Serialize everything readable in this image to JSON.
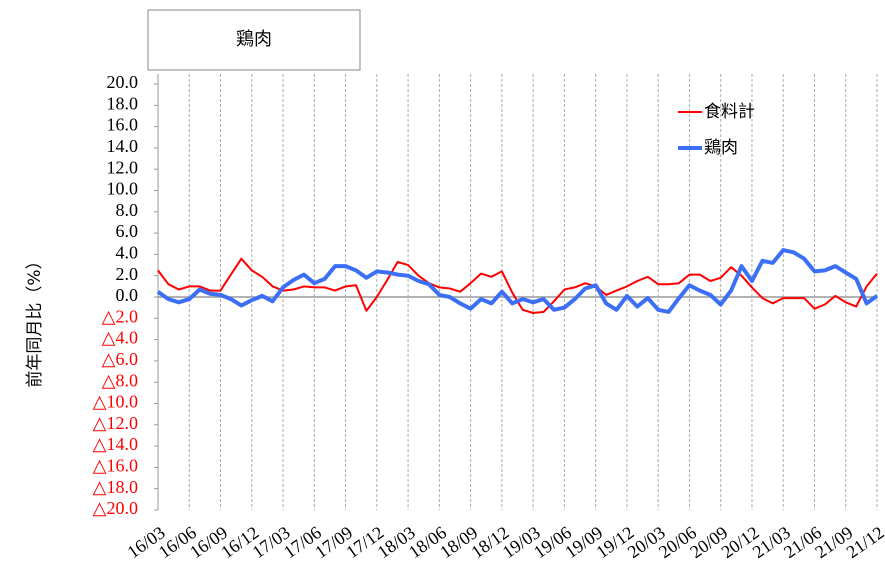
{
  "chart_data": {
    "type": "line",
    "title": "鶏肉",
    "y_label": "前年同月比（%）",
    "categories": [
      "16/03",
      null,
      null,
      "16/06",
      null,
      null,
      "16/09",
      null,
      null,
      "16/12",
      null,
      null,
      "17/03",
      null,
      null,
      "17/06",
      null,
      null,
      "17/09",
      null,
      null,
      "17/12",
      null,
      null,
      "18/03",
      null,
      null,
      "18/06",
      null,
      null,
      "18/09",
      null,
      null,
      "18/12",
      null,
      null,
      "19/03",
      null,
      null,
      "19/06",
      null,
      null,
      "19/09",
      null,
      null,
      "19/12",
      null,
      null,
      "20/03",
      null,
      null,
      "20/06",
      null,
      null,
      "20/09",
      null,
      null,
      "20/12",
      null,
      null,
      "21/03",
      null,
      null,
      "21/06",
      null,
      null,
      "21/09",
      null,
      null,
      "21/12"
    ],
    "series": [
      {
        "name": "食料計",
        "color": "#ff0000",
        "width": 2,
        "values": [
          2.5,
          1.2,
          0.7,
          1.0,
          1.0,
          0.6,
          0.6,
          2.1,
          3.6,
          2.5,
          1.9,
          1.0,
          0.6,
          0.7,
          1.0,
          0.9,
          0.9,
          0.6,
          1.0,
          1.1,
          -1.3,
          0.0,
          1.6,
          3.3,
          3.0,
          2.0,
          1.3,
          0.9,
          0.8,
          0.5,
          1.3,
          2.2,
          1.9,
          2.4,
          0.4,
          -1.2,
          -1.5,
          -1.4,
          -0.4,
          0.7,
          0.9,
          1.3,
          1.0,
          0.2,
          0.6,
          1.0,
          1.5,
          1.9,
          1.2,
          1.2,
          1.3,
          2.1,
          2.1,
          1.5,
          1.8,
          2.8,
          2.0,
          0.9,
          -0.1,
          -0.6,
          -0.1,
          -0.1,
          -0.1,
          -1.1,
          -0.7,
          0.1,
          -0.5,
          -0.9,
          1.0,
          2.2
        ]
      },
      {
        "name": "鶏肉",
        "color": "#3b6ff5",
        "width": 4,
        "values": [
          0.5,
          -0.2,
          -0.5,
          -0.2,
          0.7,
          0.3,
          0.2,
          -0.2,
          -0.8,
          -0.3,
          0.1,
          -0.4,
          0.9,
          1.6,
          2.1,
          1.3,
          1.7,
          2.9,
          2.9,
          2.5,
          1.8,
          2.4,
          2.3,
          2.1,
          2.0,
          1.5,
          1.2,
          0.2,
          0.0,
          -0.6,
          -1.1,
          -0.2,
          -0.6,
          0.5,
          -0.6,
          -0.2,
          -0.5,
          -0.2,
          -1.2,
          -1.0,
          -0.2,
          0.8,
          1.1,
          -0.6,
          -1.2,
          0.1,
          -0.9,
          -0.1,
          -1.2,
          -1.4,
          -0.1,
          1.1,
          0.6,
          0.2,
          -0.7,
          0.6,
          2.9,
          1.5,
          3.4,
          3.2,
          4.4,
          4.2,
          3.6,
          2.4,
          2.5,
          2.9,
          2.3,
          1.7,
          -0.6,
          0.1
        ]
      }
    ],
    "ylim": [
      -20,
      20
    ],
    "yticks": [
      {
        "value": 20,
        "label": "20.0"
      },
      {
        "value": 18,
        "label": "18.0"
      },
      {
        "value": 16,
        "label": "16.0"
      },
      {
        "value": 14,
        "label": "14.0"
      },
      {
        "value": 12,
        "label": "12.0"
      },
      {
        "value": 10,
        "label": "10.0"
      },
      {
        "value": 8,
        "label": "8.0"
      },
      {
        "value": 6,
        "label": "6.0"
      },
      {
        "value": 4,
        "label": "4.0"
      },
      {
        "value": 2,
        "label": "2.0"
      },
      {
        "value": 0,
        "label": "0.0"
      },
      {
        "value": -2,
        "label": "△2.0"
      },
      {
        "value": -4,
        "label": "△4.0"
      },
      {
        "value": -6,
        "label": "△6.0"
      },
      {
        "value": -8,
        "label": "△8.0"
      },
      {
        "value": -10,
        "label": "△10.0"
      },
      {
        "value": -12,
        "label": "△12.0"
      },
      {
        "value": -14,
        "label": "△14.0"
      },
      {
        "value": -16,
        "label": "△16.0"
      },
      {
        "value": -18,
        "label": "△18.0"
      },
      {
        "value": -20,
        "label": "△20.0"
      }
    ],
    "negative_tick_color": "#ff0000",
    "legend": "upper right",
    "grid": true
  }
}
